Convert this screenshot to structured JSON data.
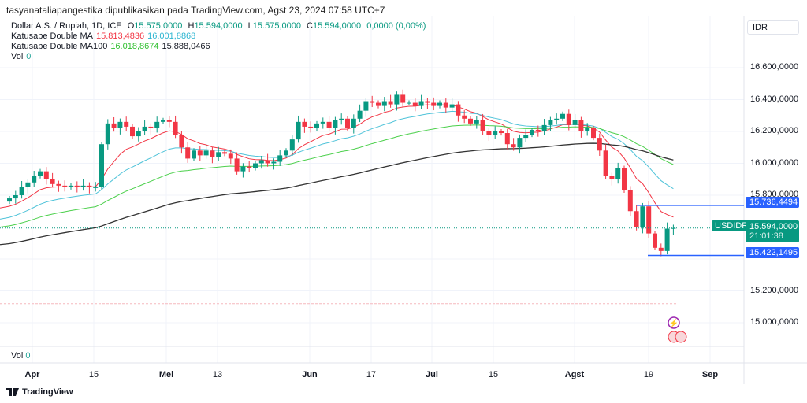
{
  "published_line": "tasyanataliapangestika dipublikasikan pada TradingView.com, Agst 23, 2024 07:58 UTC+7",
  "legend": {
    "symbol": "Dollar A.S. / Rupiah, 1D, ICE",
    "o_label": "O",
    "o": "15.575,0000",
    "h_label": "H",
    "h": "15.594,0000",
    "l_label": "L",
    "l": "15.575,0000",
    "c_label": "C",
    "c": "15.594,0000",
    "change": "0,0000 (0,00%)",
    "ma1_name": "Katusabe Double MA",
    "ma1_a": "15.813,4836",
    "ma1_b": "16.001,8868",
    "ma2_name": "Katusabe Double MA100",
    "ma2_a": "16.018,8674",
    "ma2_b": "15.888,0466",
    "vol_label": "Vol",
    "vol": "0"
  },
  "currency": "IDR",
  "price_axis": [
    "16.600,0000",
    "16.400,0000",
    "16.200,0000",
    "16.000,0000",
    "15.800,0000",
    "15.200,0000",
    "15.000,0000"
  ],
  "price_axis_values": [
    16600000,
    16400000,
    16200000,
    16000000,
    15800000,
    15200000,
    15000000
  ],
  "tags": {
    "upper": "15.736,4494",
    "upper_value": 15736449.4,
    "symbol": "USDIDR",
    "last": "15.594,0000",
    "last_value": 15594000,
    "countdown": "21:01:38",
    "lower": "15.422,1495",
    "lower_value": 15422149.5
  },
  "time_axis": [
    "Apr",
    "15",
    "Mei",
    "13",
    "Jun",
    "17",
    "Jul",
    "15",
    "Agst",
    "19",
    "Sep"
  ],
  "vol_pane": {
    "label": "Vol",
    "value": "0"
  },
  "brand": "TradingView",
  "colors": {
    "up": "#089981",
    "down": "#f23645",
    "ma_red": "#f23645",
    "ma_cyan": "#4fc3d9",
    "ma_green": "#4cd04c",
    "ma_black": "#333",
    "level": "#2962ff"
  },
  "chart_data": {
    "type": "candlestick",
    "closes": [
      15780000,
      15800000,
      15850000,
      15880000,
      15920000,
      15950000,
      15900000,
      15870000,
      15860000,
      15850000,
      15860000,
      15850000,
      15860000,
      15850000,
      15850000,
      16120000,
      16250000,
      16220000,
      16260000,
      16230000,
      16170000,
      16200000,
      16230000,
      16220000,
      16260000,
      16270000,
      16260000,
      16180000,
      16100000,
      16030000,
      16080000,
      16050000,
      16080000,
      16040000,
      16070000,
      16060000,
      16030000,
      15950000,
      15980000,
      15970000,
      16000000,
      16020000,
      16000000,
      16010000,
      16050000,
      16080000,
      16150000,
      16260000,
      16230000,
      16220000,
      16250000,
      16260000,
      16220000,
      16270000,
      16280000,
      16220000,
      16280000,
      16330000,
      16390000,
      16380000,
      16360000,
      16390000,
      16370000,
      16430000,
      16380000,
      16380000,
      16360000,
      16390000,
      16380000,
      16360000,
      16380000,
      16350000,
      16370000,
      16300000,
      16280000,
      16250000,
      16270000,
      16200000,
      16180000,
      16200000,
      16190000,
      16120000,
      16100000,
      16160000,
      16180000,
      16210000,
      16200000,
      16240000,
      16270000,
      16280000,
      16310000,
      16240000,
      16270000,
      16200000,
      16220000,
      16160000,
      16080000,
      15920000,
      15900000,
      15970000,
      15830000,
      15700000,
      15600000,
      15730000,
      15560000,
      15470000,
      15450000,
      15590000,
      15594000
    ],
    "first_open": 15760000,
    "ma_red": {
      "period": 10,
      "seed": 15720000
    },
    "ma_cyan": {
      "period": 22,
      "seed": 15650000
    },
    "ma_green": {
      "period": 45,
      "seed": 15600000
    },
    "ma_black": {
      "period": 90,
      "seed": 15490000
    },
    "reference_line": 15120000
  }
}
